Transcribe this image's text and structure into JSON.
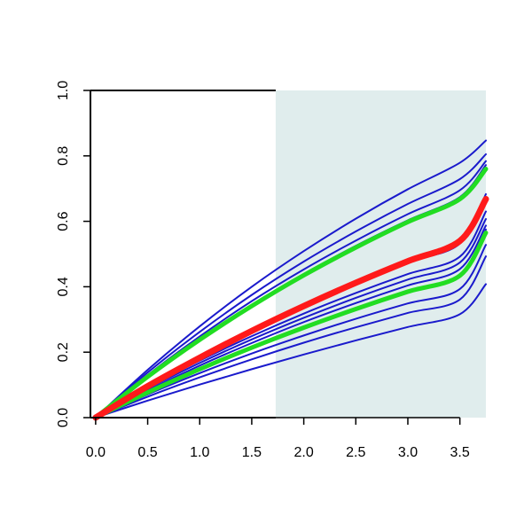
{
  "chart_data": {
    "type": "line",
    "title": "",
    "xlabel": "",
    "ylabel": "",
    "xlim": [
      -0.05,
      3.75
    ],
    "ylim": [
      0,
      1
    ],
    "x_ticks": [
      "0.0",
      "0.5",
      "1.0",
      "1.5",
      "2.0",
      "2.5",
      "3.0",
      "3.5"
    ],
    "y_ticks": [
      "0.0",
      "0.2",
      "0.4",
      "0.6",
      "0.8",
      "1.0"
    ],
    "grid": false,
    "legend": "none",
    "shaded_region": {
      "x_start": 1.73,
      "x_end": 3.75,
      "color": "#e0eded"
    },
    "x": [
      0,
      0.5,
      1.0,
      1.5,
      2.0,
      2.5,
      3.0,
      3.5,
      3.75
    ],
    "colors": {
      "draws": "#1a1acc",
      "mean": "#ff1a1a",
      "band": "#22dd22"
    },
    "series": [
      {
        "role": "draw",
        "values": [
          0,
          0.146,
          0.279,
          0.4,
          0.509,
          0.608,
          0.698,
          0.779,
          0.847
        ]
      },
      {
        "role": "draw",
        "values": [
          0,
          0.138,
          0.262,
          0.375,
          0.477,
          0.569,
          0.653,
          0.729,
          0.805
        ]
      },
      {
        "role": "draw",
        "values": [
          0,
          0.13,
          0.248,
          0.356,
          0.453,
          0.541,
          0.622,
          0.695,
          0.784
        ]
      },
      {
        "role": "draw",
        "values": [
          0,
          0.126,
          0.24,
          0.344,
          0.439,
          0.525,
          0.603,
          0.674,
          0.772
        ]
      },
      {
        "role": "draw",
        "values": [
          0,
          0.101,
          0.19,
          0.271,
          0.345,
          0.413,
          0.475,
          0.532,
          0.683
        ]
      },
      {
        "role": "draw",
        "values": [
          0,
          0.092,
          0.174,
          0.249,
          0.318,
          0.381,
          0.439,
          0.492,
          0.63
        ]
      },
      {
        "role": "draw",
        "values": [
          0,
          0.088,
          0.167,
          0.239,
          0.305,
          0.366,
          0.422,
          0.474,
          0.607
        ]
      },
      {
        "role": "draw",
        "values": [
          0,
          0.083,
          0.159,
          0.228,
          0.292,
          0.35,
          0.404,
          0.454,
          0.587
        ]
      },
      {
        "role": "draw",
        "values": [
          0,
          0.079,
          0.151,
          0.217,
          0.278,
          0.334,
          0.386,
          0.434,
          0.575
        ]
      },
      {
        "role": "draw",
        "values": [
          0,
          0.071,
          0.136,
          0.196,
          0.251,
          0.302,
          0.349,
          0.393,
          0.528
        ]
      },
      {
        "role": "draw",
        "values": [
          0,
          0.064,
          0.123,
          0.178,
          0.229,
          0.276,
          0.32,
          0.361,
          0.493
        ]
      },
      {
        "role": "draw",
        "values": [
          0,
          0.052,
          0.101,
          0.148,
          0.193,
          0.236,
          0.277,
          0.316,
          0.408
        ]
      },
      {
        "role": "band",
        "values": [
          0,
          0.125,
          0.238,
          0.341,
          0.435,
          0.52,
          0.598,
          0.668,
          0.76
        ]
      },
      {
        "role": "band",
        "values": [
          0,
          0.077,
          0.148,
          0.214,
          0.275,
          0.332,
          0.385,
          0.434,
          0.565
        ]
      },
      {
        "role": "mean",
        "values": [
          0,
          0.096,
          0.183,
          0.265,
          0.341,
          0.412,
          0.478,
          0.54,
          0.668
        ]
      }
    ]
  }
}
